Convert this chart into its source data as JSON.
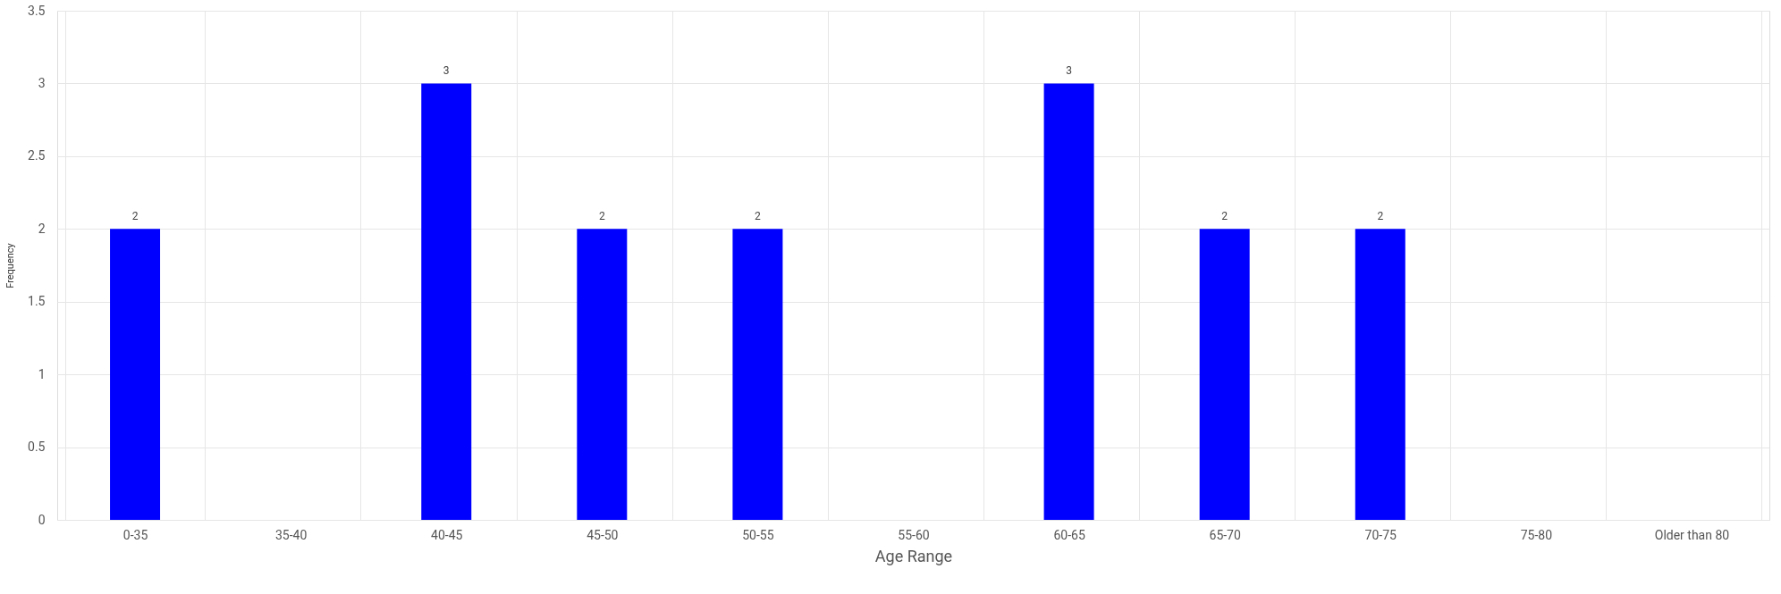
{
  "chart_data": {
    "type": "bar",
    "xlabel": "Age Range",
    "ylabel": "Frequency",
    "categories": [
      "0-35",
      "35-40",
      "40-45",
      "45-50",
      "50-55",
      "55-60",
      "60-65",
      "65-70",
      "70-75",
      "75-80",
      "Older than 80"
    ],
    "values": [
      2,
      0,
      3,
      2,
      2,
      0,
      3,
      2,
      2,
      0,
      0
    ],
    "value_labels": [
      "2",
      null,
      "3",
      "2",
      "2",
      null,
      "3",
      "2",
      "2",
      null,
      null
    ],
    "color": "#0000ff",
    "ylim": [
      0,
      3.5
    ],
    "yticks": [
      0,
      0.5,
      1,
      1.5,
      2,
      2.5,
      3,
      3.5
    ],
    "grid": true
  }
}
